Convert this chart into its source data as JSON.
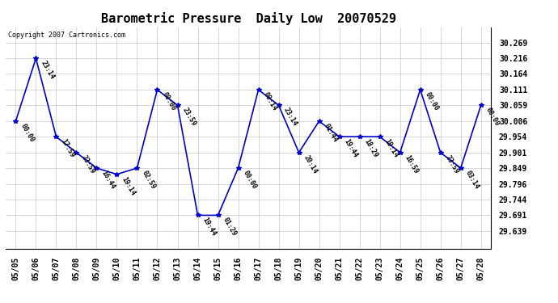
{
  "title": "Barometric Pressure  Daily Low  20070529",
  "copyright": "Copyright 2007 Cartronics.com",
  "background_color": "#ffffff",
  "line_color": "#0000cc",
  "grid_color": "#c8c8c8",
  "points": [
    {
      "x": 0,
      "date": "05/05",
      "value": 30.006,
      "label": "00:00"
    },
    {
      "x": 1,
      "date": "05/06",
      "value": 30.216,
      "label": "23:14"
    },
    {
      "x": 2,
      "date": "05/07",
      "value": 29.954,
      "label": "17:59"
    },
    {
      "x": 3,
      "date": "05/08",
      "value": 29.901,
      "label": "23:59"
    },
    {
      "x": 4,
      "date": "05/09",
      "value": 29.849,
      "label": "16:44"
    },
    {
      "x": 5,
      "date": "05/10",
      "value": 29.828,
      "label": "19:14"
    },
    {
      "x": 6,
      "date": "05/11",
      "value": 29.849,
      "label": "02:59"
    },
    {
      "x": 7,
      "date": "05/12",
      "value": 30.111,
      "label": "00:00"
    },
    {
      "x": 8,
      "date": "05/13",
      "value": 30.059,
      "label": "23:59"
    },
    {
      "x": 9,
      "date": "05/14",
      "value": 29.691,
      "label": "19:44"
    },
    {
      "x": 10,
      "date": "05/15",
      "value": 29.691,
      "label": "01:29"
    },
    {
      "x": 11,
      "date": "05/16",
      "value": 29.849,
      "label": "00:00"
    },
    {
      "x": 12,
      "date": "05/17",
      "value": 30.111,
      "label": "00:14"
    },
    {
      "x": 13,
      "date": "05/18",
      "value": 30.059,
      "label": "23:14"
    },
    {
      "x": 14,
      "date": "05/19",
      "value": 29.901,
      "label": "20:14"
    },
    {
      "x": 15,
      "date": "05/20",
      "value": 30.006,
      "label": "01:44"
    },
    {
      "x": 16,
      "date": "05/21",
      "value": 29.954,
      "label": "19:44"
    },
    {
      "x": 17,
      "date": "05/22",
      "value": 29.954,
      "label": "18:29"
    },
    {
      "x": 18,
      "date": "05/23",
      "value": 29.954,
      "label": "19:14"
    },
    {
      "x": 19,
      "date": "05/24",
      "value": 29.901,
      "label": "16:59"
    },
    {
      "x": 20,
      "date": "05/25",
      "value": 30.111,
      "label": "00:00"
    },
    {
      "x": 21,
      "date": "05/26",
      "value": 29.901,
      "label": "23:59"
    },
    {
      "x": 22,
      "date": "05/27",
      "value": 29.849,
      "label": "03:14"
    },
    {
      "x": 23,
      "date": "05/28",
      "value": 30.059,
      "label": "00:00"
    }
  ],
  "yticks": [
    29.639,
    29.691,
    29.744,
    29.796,
    29.849,
    29.901,
    29.954,
    30.006,
    30.059,
    30.111,
    30.164,
    30.216,
    30.269
  ],
  "ylim_min": 29.58,
  "ylim_max": 30.32,
  "title_fontsize": 11,
  "label_fontsize": 6,
  "tick_fontsize": 7,
  "copyright_fontsize": 6
}
